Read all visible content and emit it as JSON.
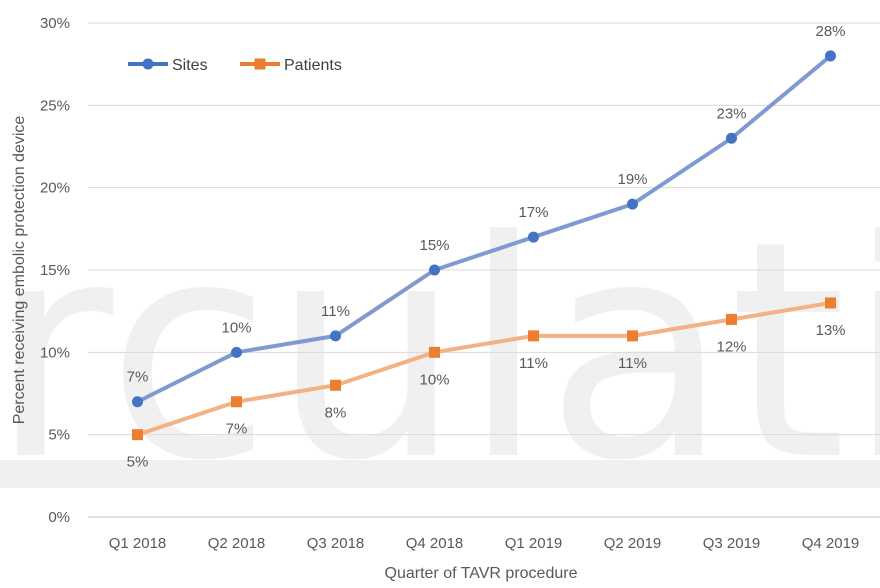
{
  "chart_data": {
    "type": "line",
    "categories": [
      "Q1 2018",
      "Q2 2018",
      "Q3 2018",
      "Q4 2018",
      "Q1 2019",
      "Q2 2019",
      "Q3 2019",
      "Q4 2019"
    ],
    "series": [
      {
        "name": "Sites",
        "values": [
          7,
          10,
          11,
          15,
          17,
          19,
          23,
          28
        ],
        "labels": [
          "7%",
          "10%",
          "11%",
          "15%",
          "17%",
          "19%",
          "23%",
          "28%"
        ],
        "color": "#4472c4",
        "line_color": "#7f9ad1",
        "marker": "circle"
      },
      {
        "name": "Patients",
        "values": [
          5,
          7,
          8,
          10,
          11,
          11,
          12,
          13
        ],
        "labels": [
          "5%",
          "7%",
          "8%",
          "10%",
          "11%",
          "11%",
          "12%",
          "13%"
        ],
        "color": "#ed7d31",
        "line_color": "#f4b183",
        "marker": "square"
      }
    ],
    "xlabel": "Quarter of TAVR procedure",
    "ylabel": "Percent receiving embolic protection device",
    "ylim": [
      0,
      30
    ],
    "yticks": [
      "0%",
      "5%",
      "10%",
      "15%",
      "20%",
      "25%",
      "30%"
    ],
    "grid": true,
    "legend": "top-left",
    "watermark": "rculatio"
  }
}
